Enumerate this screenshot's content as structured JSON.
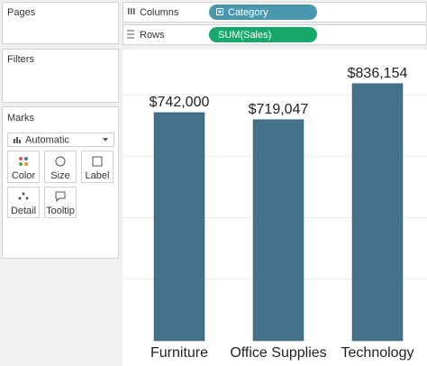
{
  "sidebar": {
    "pages": "Pages",
    "filters": "Filters",
    "marks": {
      "title": "Marks",
      "mark_type": "Automatic",
      "buttons": [
        "Color",
        "Size",
        "Label",
        "Detail",
        "Tooltip"
      ]
    }
  },
  "shelves": {
    "columns": {
      "label": "Columns",
      "pill": "Category"
    },
    "rows": {
      "label": "Rows",
      "pill": "SUM(Sales)"
    }
  },
  "chart_data": {
    "type": "bar",
    "categories": [
      "Furniture",
      "Office Supplies",
      "Technology"
    ],
    "values": [
      742000,
      719047,
      836154
    ],
    "value_labels": [
      "$742,000",
      "$719,047",
      "$836,154"
    ],
    "color": "#44708a",
    "ylim": [
      0,
      938000
    ],
    "yticks": [
      200000,
      400000,
      600000,
      800000
    ],
    "grid": true
  }
}
